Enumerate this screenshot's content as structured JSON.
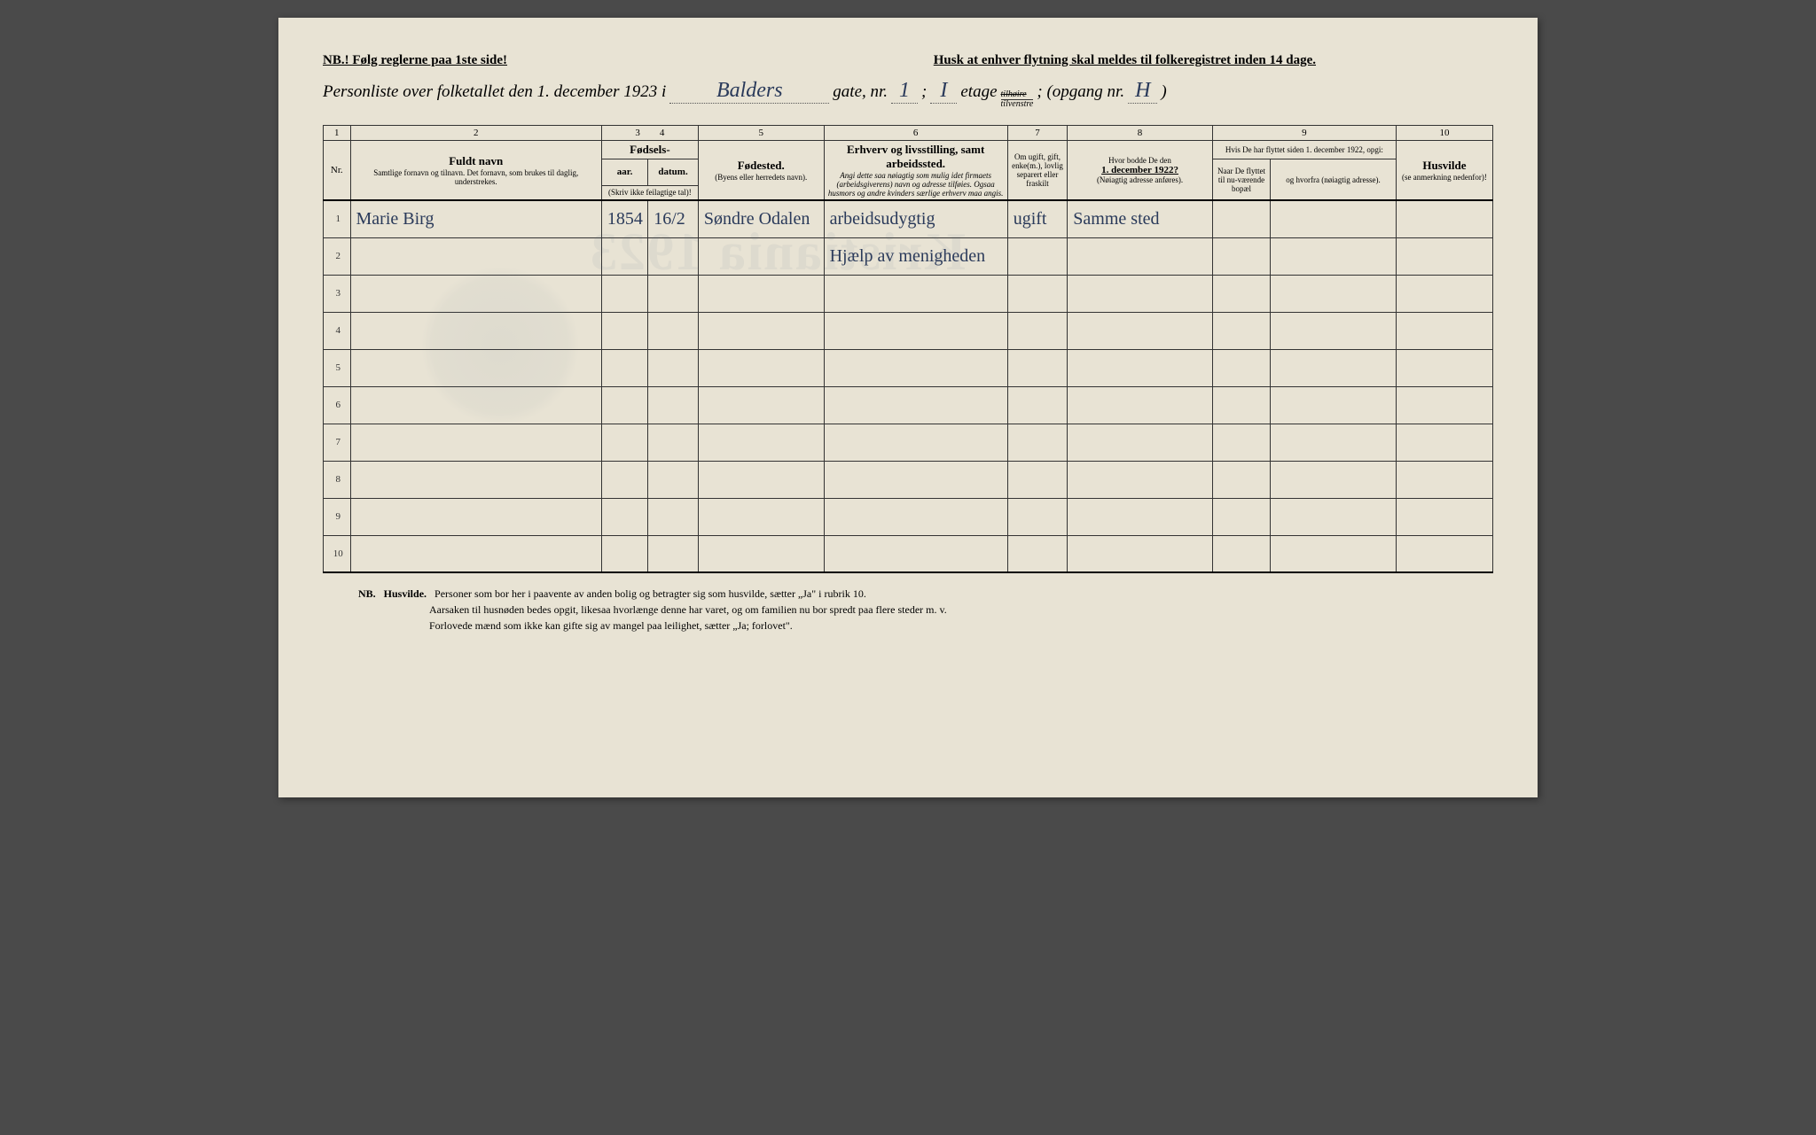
{
  "header": {
    "nb_rule": "NB.! Følg reglerne paa 1ste side!",
    "husk": "Husk at enhver flytning skal meldes til folkeregistret inden 14 dage.",
    "title_prefix": "Personliste over folketallet den 1. december 1923 i",
    "street": "Balders",
    "gate_label": "gate, nr.",
    "gate_nr": "1",
    "semicolon1": ";",
    "etage_value": "I",
    "etage_label": "etage",
    "etage_top": "tilhøire",
    "etage_bottom": "tilvenstre",
    "opgang_label": "; (opgang nr.",
    "opgang_nr": "H",
    "closing": ")"
  },
  "columns": {
    "numbers": [
      "1",
      "2",
      "3",
      "4",
      "5",
      "6",
      "7",
      "8",
      "9",
      "10"
    ],
    "nr": "Nr.",
    "fuldt_navn": "Fuldt navn",
    "fuldt_navn_sub": "Samtlige fornavn og tilnavn. Det fornavn, som brukes til daglig, understrekes.",
    "fodsels": "Fødsels-",
    "aar": "aar.",
    "datum": "datum.",
    "aar_sub": "(Skriv ikke feilagtige tal)!",
    "fodested": "Fødested.",
    "fodested_sub": "(Byens eller herredets navn).",
    "erhverv": "Erhverv og livsstilling, samt arbeidssted.",
    "erhverv_sub": "Angi dette saa nøiagtig som mulig idet firmaets (arbeidsgiverens) navn og adresse tilføies. Ogsaa husmors og andre kvinders særlige erhverv maa angis.",
    "ugift": "Om ugift, gift, enke(m.), lovlig separert eller fraskilt",
    "bodde": "Hvor bodde De den",
    "bodde_date": "1. december 1922?",
    "bodde_sub": "(Nøiagtig adresse anføres).",
    "flyttet_header": "Hvis De har flyttet siden 1. december 1922, opgi:",
    "naar": "Naar De flyttet til nu-værende bopæl",
    "hvorfra": "og hvorfra (nøiagtig adresse).",
    "husvilde": "Husvilde",
    "husvilde_sub": "(se anmerkning nedenfor)!"
  },
  "rows": [
    {
      "nr": "1",
      "name": "Marie Birg",
      "aar": "1854",
      "datum": "16/2",
      "fodested": "Søndre Odalen",
      "erhverv": "arbeidsudygtig",
      "ugift": "ugift",
      "bodde": "Samme sted",
      "naar": "",
      "hvorfra": "",
      "husvilde": ""
    },
    {
      "nr": "2",
      "name": "",
      "aar": "",
      "datum": "",
      "fodested": "",
      "erhverv": "Hjælp av menigheden",
      "ugift": "",
      "bodde": "",
      "naar": "",
      "hvorfra": "",
      "husvilde": ""
    },
    {
      "nr": "3",
      "name": "",
      "aar": "",
      "datum": "",
      "fodested": "",
      "erhverv": "",
      "ugift": "",
      "bodde": "",
      "naar": "",
      "hvorfra": "",
      "husvilde": ""
    },
    {
      "nr": "4",
      "name": "",
      "aar": "",
      "datum": "",
      "fodested": "",
      "erhverv": "",
      "ugift": "",
      "bodde": "",
      "naar": "",
      "hvorfra": "",
      "husvilde": ""
    },
    {
      "nr": "5",
      "name": "",
      "aar": "",
      "datum": "",
      "fodested": "",
      "erhverv": "",
      "ugift": "",
      "bodde": "",
      "naar": "",
      "hvorfra": "",
      "husvilde": ""
    },
    {
      "nr": "6",
      "name": "",
      "aar": "",
      "datum": "",
      "fodested": "",
      "erhverv": "",
      "ugift": "",
      "bodde": "",
      "naar": "",
      "hvorfra": "",
      "husvilde": ""
    },
    {
      "nr": "7",
      "name": "",
      "aar": "",
      "datum": "",
      "fodested": "",
      "erhverv": "",
      "ugift": "",
      "bodde": "",
      "naar": "",
      "hvorfra": "",
      "husvilde": ""
    },
    {
      "nr": "8",
      "name": "",
      "aar": "",
      "datum": "",
      "fodested": "",
      "erhverv": "",
      "ugift": "",
      "bodde": "",
      "naar": "",
      "hvorfra": "",
      "husvilde": ""
    },
    {
      "nr": "9",
      "name": "",
      "aar": "",
      "datum": "",
      "fodested": "",
      "erhverv": "",
      "ugift": "",
      "bodde": "",
      "naar": "",
      "hvorfra": "",
      "husvilde": ""
    },
    {
      "nr": "10",
      "name": "",
      "aar": "",
      "datum": "",
      "fodested": "",
      "erhverv": "",
      "ugift": "",
      "bodde": "",
      "naar": "",
      "hvorfra": "",
      "husvilde": ""
    }
  ],
  "footer": {
    "nb": "NB.",
    "husvilde_label": "Husvilde.",
    "line1": "Personer som bor her i paavente av anden bolig og betragter sig som husvilde, sætter „Ja\" i rubrik 10.",
    "line2": "Aarsaken til husnøden bedes opgit, likesaa hvorlænge denne har varet, og om familien nu bor spredt paa flere steder m. v.",
    "line3": "Forlovede mænd som ikke kan gifte sig av mangel paa leilighet, sætter „Ja; forlovet\"."
  },
  "style": {
    "paper_bg": "#e8e3d4",
    "ink": "#2a3a5a",
    "print": "#222222",
    "border": "#333333"
  }
}
